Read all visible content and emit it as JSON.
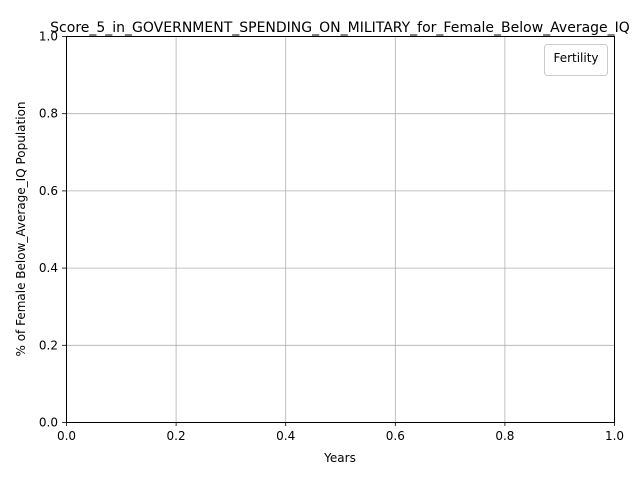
{
  "chart_data": {
    "type": "line",
    "title": "Score_5_in_GOVERNMENT_SPENDING_ON_MILITARY_for_Female_Below_Average_IQ",
    "xlabel": "Years",
    "ylabel": "% of Female Below_Average_IQ Population",
    "xlim": [
      0.0,
      1.0
    ],
    "ylim": [
      0.0,
      1.0
    ],
    "x_ticks": [
      "0.0",
      "0.2",
      "0.4",
      "0.6",
      "0.8",
      "1.0"
    ],
    "y_ticks": [
      "0.0",
      "0.2",
      "0.4",
      "0.6",
      "0.8",
      "1.0"
    ],
    "grid": true,
    "legend": {
      "title": "Fertility",
      "location": "top-right",
      "entries": []
    },
    "series": []
  }
}
